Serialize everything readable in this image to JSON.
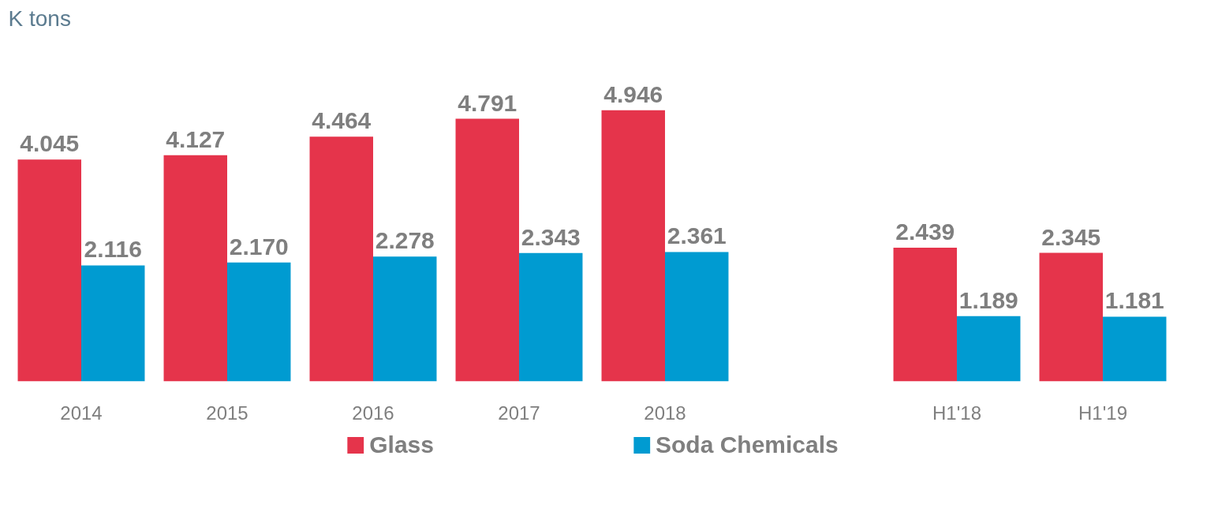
{
  "chart_data": {
    "type": "bar",
    "title": "K tons",
    "categories": [
      "2014",
      "2015",
      "2016",
      "2017",
      "2018",
      null,
      "H1'18",
      "H1'19"
    ],
    "series": [
      {
        "name": "Glass",
        "color": "#e5344b",
        "values": [
          4.045,
          4.127,
          4.464,
          4.791,
          4.946,
          null,
          2.439,
          2.345
        ],
        "value_labels": [
          "4.045",
          "4.127",
          "4.464",
          "4.791",
          "4.946",
          null,
          "2.439",
          "2.345"
        ]
      },
      {
        "name": "Soda Chemicals",
        "color": "#009bd1",
        "values": [
          2.116,
          2.17,
          2.278,
          2.343,
          2.361,
          null,
          1.189,
          1.181
        ],
        "value_labels": [
          "2.116",
          "2.170",
          "2.278",
          "2.343",
          "2.361",
          null,
          "1.189",
          "1.181"
        ]
      }
    ],
    "grid": false,
    "legend": "bottom"
  }
}
